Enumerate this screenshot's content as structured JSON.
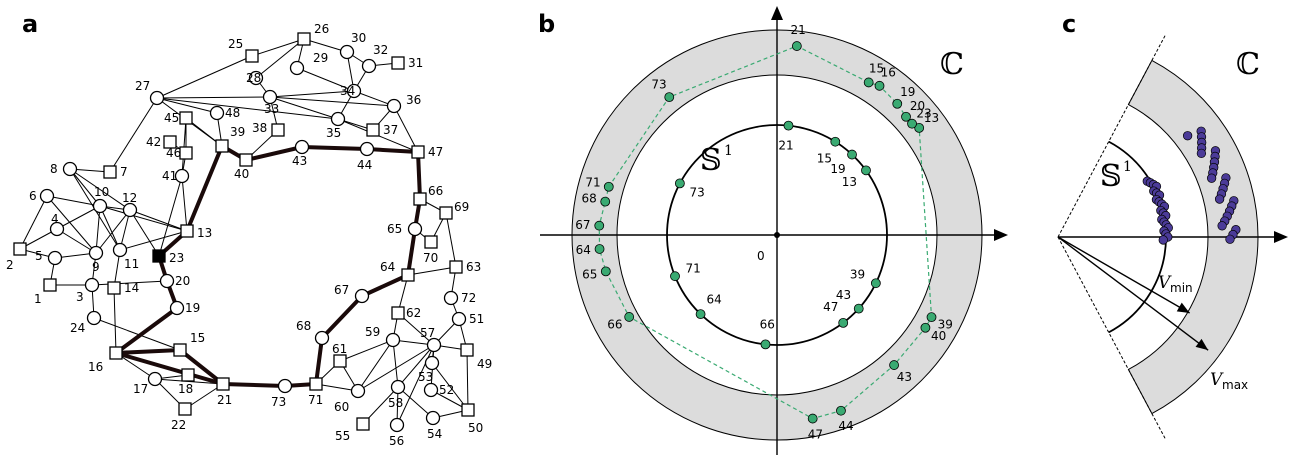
{
  "panels": [
    {
      "id": "a",
      "letter": "a"
    },
    {
      "id": "b",
      "letter": "b"
    },
    {
      "id": "c",
      "letter": "c"
    }
  ],
  "colors": {
    "annulus": "#dcdcdc",
    "green_node": "#3aaa72",
    "purple_node": "#4b3b98",
    "path_edge": "#1a0a0a",
    "dashed_polygon": "#3aaa72"
  },
  "graph": {
    "nodes": [
      {
        "id": "1",
        "shape": "square"
      },
      {
        "id": "2",
        "shape": "square"
      },
      {
        "id": "3",
        "shape": "circle"
      },
      {
        "id": "4",
        "shape": "circle"
      },
      {
        "id": "5",
        "shape": "circle"
      },
      {
        "id": "6",
        "shape": "circle"
      },
      {
        "id": "7",
        "shape": "square"
      },
      {
        "id": "8",
        "shape": "circle"
      },
      {
        "id": "9",
        "shape": "circle"
      },
      {
        "id": "10",
        "shape": "circle"
      },
      {
        "id": "11",
        "shape": "circle"
      },
      {
        "id": "12",
        "shape": "circle"
      },
      {
        "id": "13",
        "shape": "square"
      },
      {
        "id": "14",
        "shape": "square"
      },
      {
        "id": "15",
        "shape": "square"
      },
      {
        "id": "16",
        "shape": "square"
      },
      {
        "id": "17",
        "shape": "circle"
      },
      {
        "id": "18",
        "shape": "square"
      },
      {
        "id": "19",
        "shape": "circle"
      },
      {
        "id": "20",
        "shape": "circle"
      },
      {
        "id": "21",
        "shape": "square"
      },
      {
        "id": "22",
        "shape": "square"
      },
      {
        "id": "23",
        "shape": "filled-square"
      },
      {
        "id": "24",
        "shape": "circle"
      },
      {
        "id": "25",
        "shape": "square"
      },
      {
        "id": "26",
        "shape": "square"
      },
      {
        "id": "27",
        "shape": "circle"
      },
      {
        "id": "28",
        "shape": "circle"
      },
      {
        "id": "29",
        "shape": "circle"
      },
      {
        "id": "30",
        "shape": "circle"
      },
      {
        "id": "31",
        "shape": "square"
      },
      {
        "id": "32",
        "shape": "circle"
      },
      {
        "id": "33",
        "shape": "circle"
      },
      {
        "id": "34",
        "shape": "circle"
      },
      {
        "id": "35",
        "shape": "circle"
      },
      {
        "id": "36",
        "shape": "circle"
      },
      {
        "id": "37",
        "shape": "square"
      },
      {
        "id": "38",
        "shape": "square"
      },
      {
        "id": "39",
        "shape": "square"
      },
      {
        "id": "40",
        "shape": "square"
      },
      {
        "id": "41",
        "shape": "circle"
      },
      {
        "id": "42",
        "shape": "square"
      },
      {
        "id": "43",
        "shape": "circle"
      },
      {
        "id": "44",
        "shape": "circle"
      },
      {
        "id": "45",
        "shape": "square"
      },
      {
        "id": "46",
        "shape": "square"
      },
      {
        "id": "47",
        "shape": "square"
      },
      {
        "id": "48",
        "shape": "circle"
      },
      {
        "id": "49",
        "shape": "square"
      },
      {
        "id": "50",
        "shape": "square"
      },
      {
        "id": "51",
        "shape": "circle"
      },
      {
        "id": "52",
        "shape": "circle"
      },
      {
        "id": "53",
        "shape": "circle"
      },
      {
        "id": "54",
        "shape": "circle"
      },
      {
        "id": "55",
        "shape": "square"
      },
      {
        "id": "56",
        "shape": "circle"
      },
      {
        "id": "57",
        "shape": "circle"
      },
      {
        "id": "58",
        "shape": "circle"
      },
      {
        "id": "59",
        "shape": "circle"
      },
      {
        "id": "60",
        "shape": "circle"
      },
      {
        "id": "61",
        "shape": "square"
      },
      {
        "id": "62",
        "shape": "square"
      },
      {
        "id": "63",
        "shape": "square"
      },
      {
        "id": "64",
        "shape": "square"
      },
      {
        "id": "65",
        "shape": "circle"
      },
      {
        "id": "66",
        "shape": "square"
      },
      {
        "id": "67",
        "shape": "circle"
      },
      {
        "id": "68",
        "shape": "circle"
      },
      {
        "id": "69",
        "shape": "square"
      },
      {
        "id": "70",
        "shape": "square"
      },
      {
        "id": "71",
        "shape": "square"
      },
      {
        "id": "72",
        "shape": "circle"
      },
      {
        "id": "73",
        "shape": "circle"
      }
    ],
    "edges": [
      [
        "1",
        "3"
      ],
      [
        "1",
        "5"
      ],
      [
        "2",
        "5"
      ],
      [
        "2",
        "6"
      ],
      [
        "2",
        "4"
      ],
      [
        "4",
        "9"
      ],
      [
        "4",
        "10"
      ],
      [
        "5",
        "9"
      ],
      [
        "6",
        "10"
      ],
      [
        "6",
        "9"
      ],
      [
        "8",
        "10"
      ],
      [
        "8",
        "7"
      ],
      [
        "8",
        "12"
      ],
      [
        "8",
        "11"
      ],
      [
        "10",
        "12"
      ],
      [
        "10",
        "11"
      ],
      [
        "10",
        "9"
      ],
      [
        "10",
        "13"
      ],
      [
        "12",
        "11"
      ],
      [
        "12",
        "13"
      ],
      [
        "12",
        "23"
      ],
      [
        "9",
        "3"
      ],
      [
        "9",
        "12"
      ],
      [
        "11",
        "13"
      ],
      [
        "3",
        "24"
      ],
      [
        "3",
        "20"
      ],
      [
        "24",
        "15"
      ],
      [
        "14",
        "16"
      ],
      [
        "14",
        "11"
      ],
      [
        "16",
        "17"
      ],
      [
        "17",
        "18"
      ],
      [
        "17",
        "22"
      ],
      [
        "17",
        "21"
      ],
      [
        "18",
        "21"
      ],
      [
        "22",
        "21"
      ],
      [
        "15",
        "21"
      ],
      [
        "13",
        "41"
      ],
      [
        "41",
        "46"
      ],
      [
        "41",
        "45"
      ],
      [
        "41",
        "23"
      ],
      [
        "42",
        "46"
      ],
      [
        "45",
        "39"
      ],
      [
        "45",
        "46"
      ],
      [
        "27",
        "7"
      ],
      [
        "27",
        "48"
      ],
      [
        "27",
        "39"
      ],
      [
        "27",
        "25"
      ],
      [
        "27",
        "33"
      ],
      [
        "27",
        "35"
      ],
      [
        "48",
        "39"
      ],
      [
        "25",
        "26"
      ],
      [
        "26",
        "28"
      ],
      [
        "26",
        "29"
      ],
      [
        "26",
        "30"
      ],
      [
        "28",
        "33"
      ],
      [
        "29",
        "34"
      ],
      [
        "30",
        "34"
      ],
      [
        "30",
        "32"
      ],
      [
        "32",
        "34"
      ],
      [
        "32",
        "31"
      ],
      [
        "33",
        "34"
      ],
      [
        "33",
        "38"
      ],
      [
        "33",
        "36"
      ],
      [
        "33",
        "35"
      ],
      [
        "34",
        "36"
      ],
      [
        "34",
        "35"
      ],
      [
        "36",
        "37"
      ],
      [
        "36",
        "47"
      ],
      [
        "35",
        "37"
      ],
      [
        "35",
        "47"
      ],
      [
        "38",
        "40"
      ],
      [
        "39",
        "40"
      ],
      [
        "70",
        "65"
      ],
      [
        "70",
        "69"
      ],
      [
        "66",
        "69"
      ],
      [
        "69",
        "63"
      ],
      [
        "63",
        "64"
      ],
      [
        "63",
        "72"
      ],
      [
        "72",
        "51"
      ],
      [
        "64",
        "62"
      ],
      [
        "62",
        "59"
      ],
      [
        "59",
        "60"
      ],
      [
        "59",
        "58"
      ],
      [
        "59",
        "61"
      ],
      [
        "61",
        "71"
      ],
      [
        "61",
        "60"
      ],
      [
        "60",
        "71"
      ],
      [
        "60",
        "57"
      ],
      [
        "58",
        "56"
      ],
      [
        "58",
        "55"
      ],
      [
        "58",
        "54"
      ],
      [
        "58",
        "57"
      ],
      [
        "57",
        "52"
      ],
      [
        "57",
        "49"
      ],
      [
        "57",
        "51"
      ],
      [
        "57",
        "53"
      ],
      [
        "51",
        "49"
      ],
      [
        "49",
        "50"
      ],
      [
        "53",
        "50"
      ],
      [
        "52",
        "50"
      ],
      [
        "54",
        "50"
      ],
      [
        "56",
        "57"
      ],
      [
        "57",
        "59"
      ],
      [
        "62",
        "57"
      ]
    ],
    "path": [
      "16",
      "19",
      "20",
      "23",
      "13",
      "39",
      "40",
      "43",
      "44",
      "47",
      "66",
      "65",
      "64",
      "67",
      "68",
      "71",
      "73",
      "21",
      "16"
    ],
    "extra_path": [
      [
        "16",
        "15"
      ],
      [
        "15",
        "21"
      ]
    ]
  },
  "panel_b": {
    "outer_label": "ℂ",
    "inner_label": "𝕊",
    "inner_label_sup": "1",
    "origin_label": "0",
    "inner_nodes": [
      {
        "label": "21",
        "angle_deg": 84.0
      },
      {
        "label": "15",
        "angle_deg": 58.0
      },
      {
        "label": "19",
        "angle_deg": 47.0
      },
      {
        "label": "13",
        "angle_deg": 36.0
      },
      {
        "label": "73",
        "angle_deg": 152.0
      },
      {
        "label": "71",
        "angle_deg": 202.0
      },
      {
        "label": "64",
        "angle_deg": 226.0
      },
      {
        "label": "66",
        "angle_deg": 264.0
      },
      {
        "label": "47",
        "angle_deg": 307.0
      },
      {
        "label": "43",
        "angle_deg": 318.0
      },
      {
        "label": "39",
        "angle_deg": 334.0
      }
    ],
    "outer_nodes": [
      {
        "label": "21",
        "angle_deg": 84.0,
        "r": 0.97
      },
      {
        "label": "15",
        "angle_deg": 59.0,
        "r": 0.93
      },
      {
        "label": "16",
        "angle_deg": 55.5,
        "r": 0.94
      },
      {
        "label": "19",
        "angle_deg": 47.5,
        "r": 0.93
      },
      {
        "label": "20",
        "angle_deg": 42.5,
        "r": 0.92
      },
      {
        "label": "23",
        "angle_deg": 39.5,
        "r": 0.92
      },
      {
        "label": "13",
        "angle_deg": 37.0,
        "r": 0.93
      },
      {
        "label": "73",
        "angle_deg": 128.0,
        "r": 0.92
      },
      {
        "label": "71",
        "angle_deg": 164.0,
        "r": 0.92
      },
      {
        "label": "68",
        "angle_deg": 169.0,
        "r": 0.92
      },
      {
        "label": "67",
        "angle_deg": 177.0,
        "r": 0.93
      },
      {
        "label": "64",
        "angle_deg": 184.5,
        "r": 0.93
      },
      {
        "label": "65",
        "angle_deg": 192.0,
        "r": 0.92
      },
      {
        "label": "66",
        "angle_deg": 209.0,
        "r": 0.9
      },
      {
        "label": "47",
        "angle_deg": 281.0,
        "r": 0.96
      },
      {
        "label": "44",
        "angle_deg": 290.0,
        "r": 0.96
      },
      {
        "label": "43",
        "angle_deg": 312.0,
        "r": 0.92
      },
      {
        "label": "40",
        "angle_deg": 328.0,
        "r": 0.92
      },
      {
        "label": "39",
        "angle_deg": 332.0,
        "r": 0.92
      }
    ]
  },
  "panel_c": {
    "outer_label": "ℂ",
    "inner_label": "𝕊",
    "inner_label_sup": "1",
    "vmin_label": "V",
    "vmin_sub": "min",
    "vmax_label": "V",
    "vmax_sub": "max",
    "inner_points": 22,
    "outer_points": 26
  }
}
